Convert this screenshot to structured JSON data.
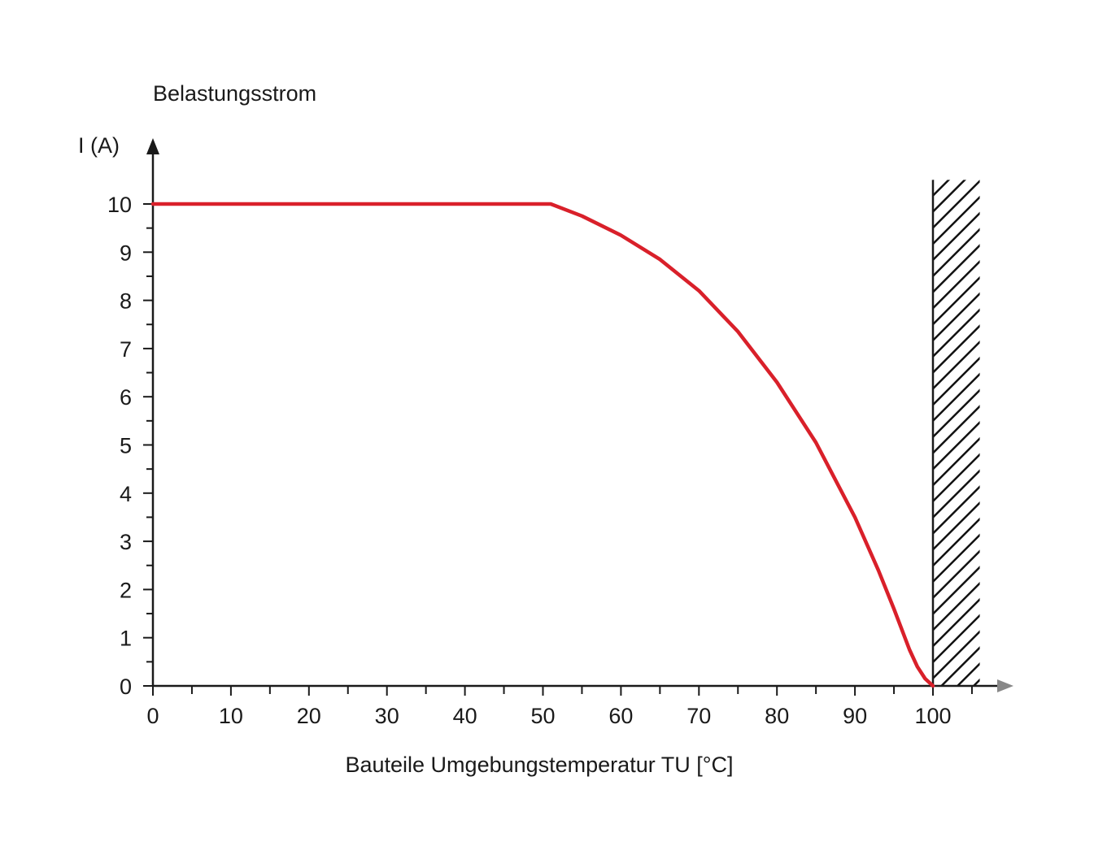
{
  "chart_data": {
    "type": "line",
    "title": "Belastungsstrom",
    "ylabel": "I (A)",
    "xlabel": "Bauteile Umgebungstemperatur TU [°C]",
    "xlim": [
      0,
      100
    ],
    "ylim": [
      0,
      10
    ],
    "x_ticks": [
      0,
      10,
      20,
      30,
      40,
      50,
      60,
      70,
      80,
      90,
      100
    ],
    "y_ticks": [
      0,
      1,
      2,
      3,
      4,
      5,
      6,
      7,
      8,
      9,
      10
    ],
    "series": [
      {
        "color": "#d9202a",
        "x": [
          0,
          51,
          55,
          60,
          65,
          70,
          75,
          80,
          85,
          90,
          93,
          95,
          97,
          98,
          99,
          100
        ],
        "y": [
          10,
          10,
          9.75,
          9.35,
          8.85,
          8.2,
          7.35,
          6.3,
          5.05,
          3.5,
          2.4,
          1.6,
          0.75,
          0.4,
          0.15,
          0
        ]
      }
    ],
    "hatched_region": {
      "x_start": 100,
      "x_end": 106,
      "y_top": 10.5
    },
    "grid": false,
    "colors": {
      "curve": "#d9202a",
      "axis": "#1a1a1a",
      "x_arrow": "#888888"
    }
  }
}
